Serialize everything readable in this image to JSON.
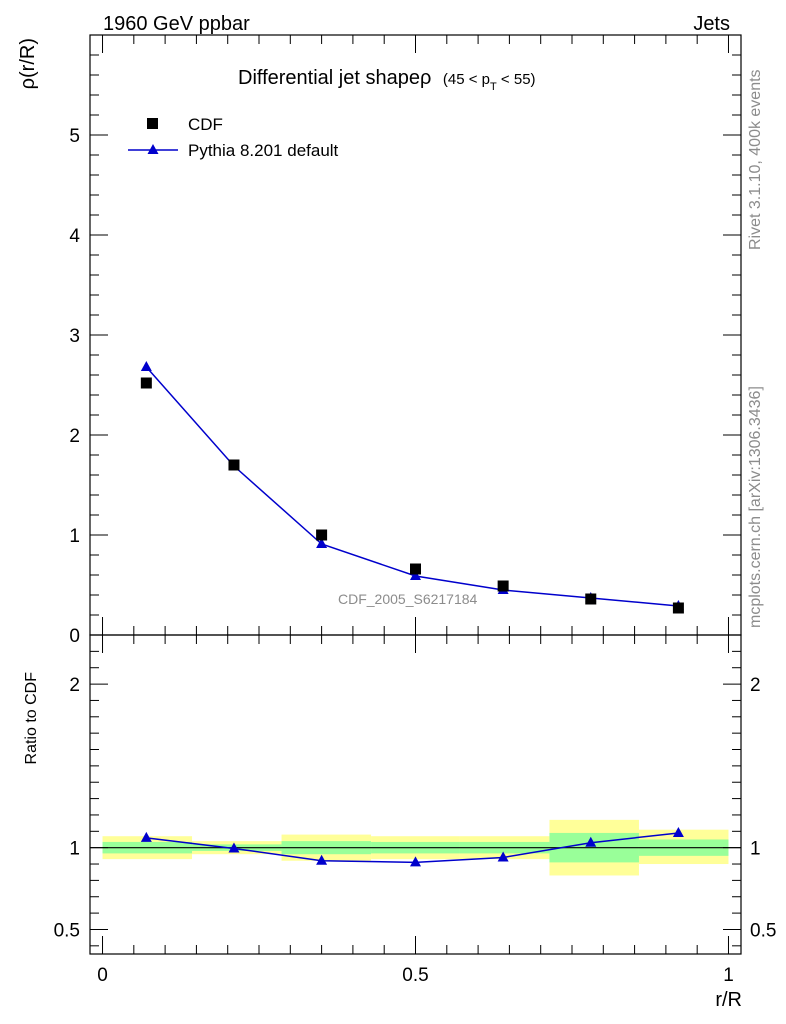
{
  "header": {
    "left": "1960 GeV ppbar",
    "right": "Jets"
  },
  "side": {
    "rivet": "Rivet 3.1.10,  400k events",
    "mcplots": "mcplots.cern.ch [arXiv:1306.3436]"
  },
  "colors": {
    "cdf": "#000000",
    "pythia": "#0000cc",
    "band_outer": "#ffff99",
    "band_inner": "#99ff99"
  },
  "chart_data": [
    {
      "type": "scatter",
      "title": "Differential jet shapeρ",
      "title_suffix_parts": [
        "(45 < p",
        "T",
        " < 55)"
      ],
      "ylabel": "ρ(r/R)",
      "xlim": [
        -0.02,
        1.02
      ],
      "ylim": [
        0,
        6
      ],
      "y_ticks": [
        0,
        1,
        2,
        3,
        4,
        5
      ],
      "y_tick_labels": [
        "0",
        "1",
        "2",
        "3",
        "4",
        "5"
      ],
      "watermark": "CDF_2005_S6217184",
      "legend": {
        "position": "top-left",
        "entries": [
          "CDF",
          "Pythia 8.201 default"
        ]
      },
      "x": [
        0.07,
        0.21,
        0.35,
        0.5,
        0.64,
        0.78,
        0.92
      ],
      "series": [
        {
          "name": "CDF",
          "marker": "square",
          "values": [
            2.52,
            1.7,
            1.0,
            0.66,
            0.49,
            0.36,
            0.27
          ]
        },
        {
          "name": "Pythia 8.201 default",
          "marker": "triangle",
          "values": [
            2.68,
            1.69,
            0.91,
            0.59,
            0.45,
            0.37,
            0.29
          ]
        }
      ]
    },
    {
      "type": "line",
      "ylabel": "Ratio to CDF",
      "xlabel": "r/R",
      "xlim": [
        -0.02,
        1.02
      ],
      "ylim": [
        0.35,
        2.3
      ],
      "y_ticks": [
        0.5,
        1,
        2
      ],
      "y_tick_labels": [
        "0.5",
        "1",
        "2"
      ],
      "x_ticks": [
        0,
        0.5,
        1
      ],
      "x_tick_labels": [
        "0",
        "0.5",
        "1"
      ],
      "x": [
        0.07,
        0.21,
        0.35,
        0.5,
        0.64,
        0.78,
        0.92
      ],
      "series": [
        {
          "name": "Pythia 8.201 default",
          "values": [
            1.06,
            0.995,
            0.92,
            0.91,
            0.94,
            1.03,
            1.09
          ]
        }
      ],
      "bands": [
        {
          "x0": 0.0,
          "x1": 0.143,
          "outer": [
            0.93,
            1.07
          ],
          "inner": [
            0.965,
            1.035
          ]
        },
        {
          "x0": 0.143,
          "x1": 0.286,
          "outer": [
            0.96,
            1.04
          ],
          "inner": [
            0.98,
            1.02
          ]
        },
        {
          "x0": 0.286,
          "x1": 0.429,
          "outer": [
            0.92,
            1.08
          ],
          "inner": [
            0.96,
            1.04
          ]
        },
        {
          "x0": 0.429,
          "x1": 0.571,
          "outer": [
            0.93,
            1.07
          ],
          "inner": [
            0.965,
            1.035
          ]
        },
        {
          "x0": 0.571,
          "x1": 0.714,
          "outer": [
            0.93,
            1.07
          ],
          "inner": [
            0.965,
            1.035
          ]
        },
        {
          "x0": 0.714,
          "x1": 0.857,
          "outer": [
            0.83,
            1.17
          ],
          "inner": [
            0.91,
            1.09
          ]
        },
        {
          "x0": 0.857,
          "x1": 1.0,
          "outer": [
            0.9,
            1.11
          ],
          "inner": [
            0.95,
            1.05
          ]
        }
      ]
    }
  ]
}
